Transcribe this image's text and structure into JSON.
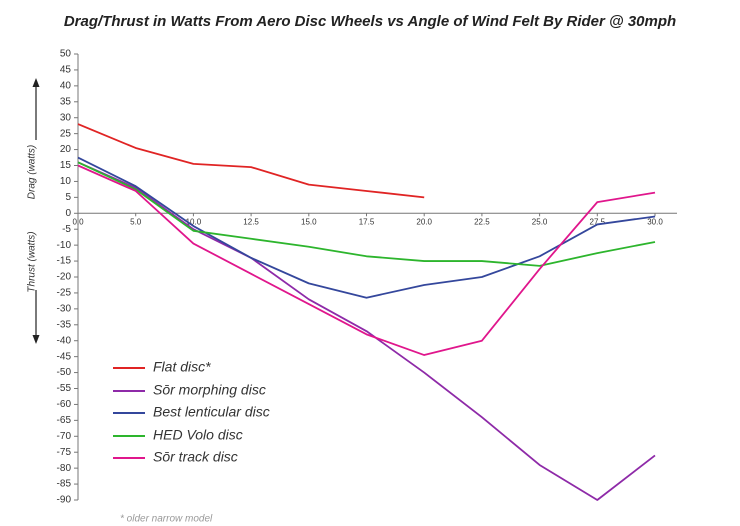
{
  "chart_data": {
    "type": "line",
    "title": "Drag/Thrust in Watts From Aero Disc Wheels vs Angle of Wind Felt By Rider @ 30mph",
    "y_label_top": "Drag (watts)",
    "y_label_bottom": "Thrust (watts)",
    "footnote": "* older narrow model",
    "categories": [
      "0.0",
      "5.0",
      "10.0",
      "12.5",
      "15.0",
      "17.5",
      "20.0",
      "22.5",
      "25.0",
      "27.5",
      "30.0"
    ],
    "series": [
      {
        "name": "Flat disc*",
        "color": "#e02424",
        "values": [
          28,
          20.5,
          15.5,
          14.5,
          9,
          7,
          5,
          null,
          null,
          null,
          null
        ]
      },
      {
        "name": "Sōr morphing disc",
        "color": "#8e2aa8",
        "values": [
          16,
          8,
          -5,
          -14,
          -27,
          -37,
          -50,
          -64,
          -79,
          -90,
          -76
        ]
      },
      {
        "name": "Best lenticular disc",
        "color": "#34479c",
        "values": [
          17.5,
          8.5,
          -4,
          -14,
          -22,
          -26.5,
          -22.5,
          -20,
          -13.5,
          -3.5,
          -1
        ]
      },
      {
        "name": "HED Volo disc",
        "color": "#2db52d",
        "values": [
          16,
          7.5,
          -5.5,
          -8,
          -10.5,
          -13.5,
          -15,
          -15,
          -16.5,
          -12.5,
          -9
        ]
      },
      {
        "name": "Sōr track disc",
        "color": "#e0168c",
        "values": [
          15,
          7,
          -9.5,
          -19,
          -28.5,
          -38,
          -44.5,
          -40,
          -17.5,
          3.5,
          6.5
        ]
      }
    ],
    "ylim": [
      -90,
      50
    ],
    "yticks": [
      -90,
      -85,
      -80,
      -75,
      -70,
      -65,
      -60,
      -55,
      -50,
      -45,
      -40,
      -35,
      -30,
      -25,
      -20,
      -15,
      -10,
      -5,
      0,
      5,
      10,
      15,
      20,
      25,
      30,
      35,
      40,
      45,
      50
    ]
  }
}
